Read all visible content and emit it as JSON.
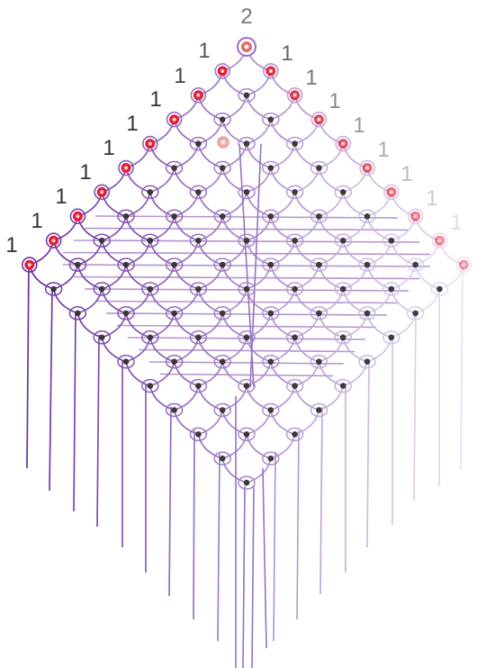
{
  "diagram": {
    "type": "bobbin lace diagram",
    "pin_labels": [
      {
        "text": "2",
        "color": "#777777"
      },
      {
        "text": "1",
        "color": "#555555"
      },
      {
        "text": "1",
        "color": "#666666"
      },
      {
        "text": "1",
        "color": "#444444"
      },
      {
        "text": "1",
        "color": "#777777"
      },
      {
        "text": "1",
        "color": "#333333"
      },
      {
        "text": "1",
        "color": "#888888"
      },
      {
        "text": "1",
        "color": "#333333"
      },
      {
        "text": "1",
        "color": "#999999"
      },
      {
        "text": "1",
        "color": "#333333"
      },
      {
        "text": "1",
        "color": "#aaaaaa"
      },
      {
        "text": "1",
        "color": "#333333"
      },
      {
        "text": "1",
        "color": "#bbbbbb"
      },
      {
        "text": "1",
        "color": "#333333"
      },
      {
        "text": "1",
        "color": "#cccccc"
      },
      {
        "text": "1",
        "color": "#333333"
      },
      {
        "text": "1",
        "color": "#dddddd"
      }
    ],
    "colors": {
      "thread_dark": "#6a2fa0",
      "thread_light": "#e6dcef",
      "start_pin": "#e0203a",
      "start_pin_light": "#f7b0b0",
      "stitch_dot": "#333333",
      "ring": "#9b6cc4"
    }
  }
}
